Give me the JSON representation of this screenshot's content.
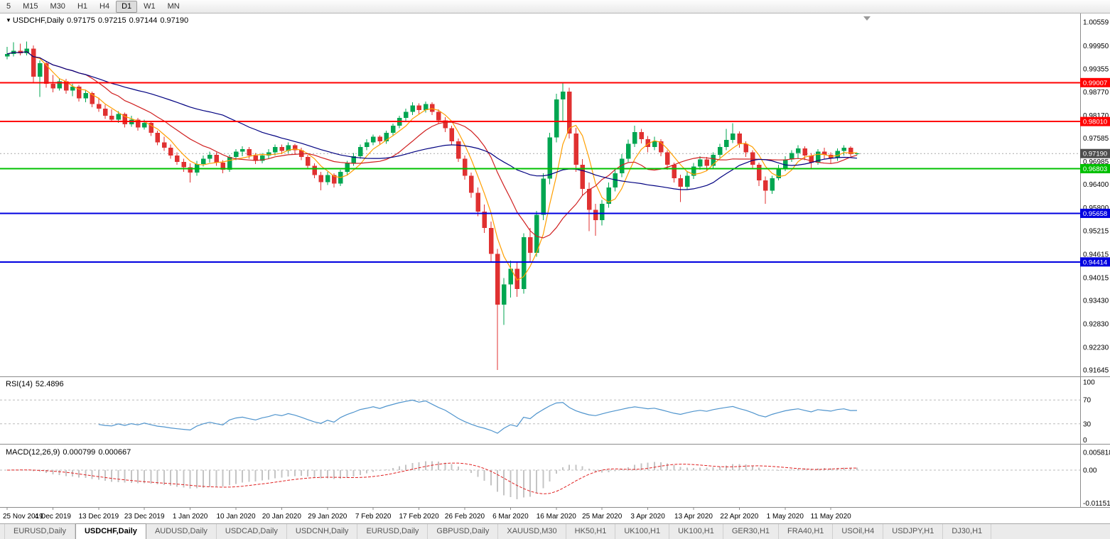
{
  "toolbar": {
    "timeframes": [
      {
        "label": "5",
        "active": false
      },
      {
        "label": "M15",
        "active": false
      },
      {
        "label": "M30",
        "active": false
      },
      {
        "label": "H1",
        "active": false
      },
      {
        "label": "H4",
        "active": false
      },
      {
        "label": "D1",
        "active": true
      },
      {
        "label": "W1",
        "active": false
      },
      {
        "label": "MN",
        "active": false
      }
    ]
  },
  "chart": {
    "title": {
      "symbol_period": "USDCHF,Daily",
      "open": "0.97175",
      "high": "0.97215",
      "low": "0.97144",
      "close": "0.97190"
    }
  },
  "rsi": {
    "name": "RSI(14)",
    "period": 14,
    "value": "52.4896",
    "color": "#4f94cd",
    "levels": [
      70,
      30
    ],
    "scale_labels": [
      "100",
      "70",
      "30",
      "0"
    ]
  },
  "macd": {
    "name": "MACD(12,26,9)",
    "fast": 12,
    "slow": 26,
    "signal_period": 9,
    "main_value": "0.000799",
    "signal_value": "0.000667",
    "histogram_color": "#c4c4c4",
    "signal_color": "#e02020",
    "scale_labels": [
      "0.005818",
      "0.00",
      "-0.011514"
    ]
  },
  "tabs": [
    {
      "label": "EURUSD,Daily",
      "active": false
    },
    {
      "label": "USDCHF,Daily",
      "active": true
    },
    {
      "label": "AUDUSD,Daily",
      "active": false
    },
    {
      "label": "USDCAD,Daily",
      "active": false
    },
    {
      "label": "USDCNH,Daily",
      "active": false
    },
    {
      "label": "EURUSD,Daily",
      "active": false
    },
    {
      "label": "GBPUSD,Daily",
      "active": false
    },
    {
      "label": "XAUUSD,M30",
      "active": false
    },
    {
      "label": "HK50,H1",
      "active": false
    },
    {
      "label": "UK100,H1",
      "active": false
    },
    {
      "label": "UK100,H1",
      "active": false
    },
    {
      "label": "GER30,H1",
      "active": false
    },
    {
      "label": "FRA40,H1",
      "active": false
    },
    {
      "label": "USOil,H4",
      "active": false
    },
    {
      "label": "USDJPY,H1",
      "active": false
    },
    {
      "label": "DJ30,H1",
      "active": false
    }
  ],
  "chart_data": {
    "type": "candlestick",
    "symbol": "USDCHF",
    "period": "Daily",
    "colors": {
      "bull": "#00a651",
      "bear": "#e03131"
    },
    "price_axis": {
      "ticks": [
        "1.00559",
        "0.99950",
        "0.99355",
        "0.98770",
        "0.98170",
        "0.97585",
        "0.96985",
        "0.96400",
        "0.95800",
        "0.95215",
        "0.94615",
        "0.94015",
        "0.93430",
        "0.92830",
        "0.92230",
        "0.91645"
      ]
    },
    "x_label_step": 7,
    "x_labels": [
      "25 Nov 2019",
      "4 Dec 2019",
      "13 Dec 2019",
      "23 Dec 2019",
      "1 Jan 2020",
      "10 Jan 2020",
      "20 Jan 2020",
      "29 Jan 2020",
      "7 Feb 2020",
      "17 Feb 2020",
      "26 Feb 2020",
      "6 Mar 2020",
      "16 Mar 2020",
      "25 Mar 2020",
      "3 Apr 2020",
      "13 Apr 2020",
      "22 Apr 2020",
      "1 May 2020",
      "11 May 2020"
    ],
    "moving_averages": [
      {
        "period": 5,
        "color": "#ff9f00"
      },
      {
        "period": 13,
        "color": "#d02020"
      },
      {
        "period": 34,
        "color": "#000080"
      }
    ],
    "hlines": [
      {
        "price": 0.99007,
        "label": "0.99007",
        "color": "#ff0000"
      },
      {
        "price": 0.9801,
        "label": "0.98010",
        "color": "#ff0000"
      },
      {
        "price": 0.96803,
        "label": "0.96803",
        "color": "#00c000"
      },
      {
        "price": 0.95658,
        "label": "0.95658",
        "color": "#0000e0"
      },
      {
        "price": 0.94414,
        "label": "0.94414",
        "color": "#0000e0"
      }
    ],
    "current_price": {
      "value": 0.9719,
      "label": "0.97190"
    },
    "candles": [
      [
        0.9968,
        0.9992,
        0.996,
        0.9974
      ],
      [
        0.9974,
        1.0004,
        0.9968,
        0.9982
      ],
      [
        0.9982,
        1.0,
        0.997,
        0.9976
      ],
      [
        0.9976,
        1.0006,
        0.997,
        0.9988
      ],
      [
        0.9988,
        0.9996,
        0.9902,
        0.9916
      ],
      [
        0.9916,
        0.9958,
        0.9864,
        0.995
      ],
      [
        0.995,
        0.9955,
        0.9888,
        0.9898
      ],
      [
        0.9898,
        0.992,
        0.9876,
        0.9886
      ],
      [
        0.9886,
        0.9912,
        0.988,
        0.9904
      ],
      [
        0.9904,
        0.991,
        0.9872,
        0.988
      ],
      [
        0.988,
        0.9898,
        0.9866,
        0.989
      ],
      [
        0.989,
        0.9895,
        0.9852,
        0.986
      ],
      [
        0.986,
        0.9882,
        0.985,
        0.9874
      ],
      [
        0.9874,
        0.9878,
        0.9838,
        0.9846
      ],
      [
        0.9846,
        0.9862,
        0.9826,
        0.9834
      ],
      [
        0.9834,
        0.9844,
        0.9808,
        0.9816
      ],
      [
        0.9816,
        0.9832,
        0.98,
        0.9806
      ],
      [
        0.9806,
        0.9828,
        0.9798,
        0.982
      ],
      [
        0.982,
        0.9824,
        0.9786,
        0.9794
      ],
      [
        0.9794,
        0.9816,
        0.9788,
        0.9806
      ],
      [
        0.9806,
        0.981,
        0.9778,
        0.9786
      ],
      [
        0.9786,
        0.9806,
        0.978,
        0.9798
      ],
      [
        0.9798,
        0.9802,
        0.9764,
        0.9772
      ],
      [
        0.9772,
        0.9778,
        0.974,
        0.9748
      ],
      [
        0.9748,
        0.9762,
        0.9726,
        0.9734
      ],
      [
        0.9734,
        0.9742,
        0.9706,
        0.9714
      ],
      [
        0.9714,
        0.9722,
        0.969,
        0.9698
      ],
      [
        0.9698,
        0.9706,
        0.9672,
        0.9684
      ],
      [
        0.9684,
        0.9694,
        0.9645,
        0.967
      ],
      [
        0.967,
        0.97,
        0.9662,
        0.9692
      ],
      [
        0.9692,
        0.9714,
        0.9686,
        0.9706
      ],
      [
        0.9706,
        0.9724,
        0.9696,
        0.9716
      ],
      [
        0.9716,
        0.9722,
        0.9688,
        0.9696
      ],
      [
        0.9696,
        0.9702,
        0.9668,
        0.9678
      ],
      [
        0.9678,
        0.9716,
        0.9672,
        0.971
      ],
      [
        0.971,
        0.973,
        0.9702,
        0.9724
      ],
      [
        0.9724,
        0.9738,
        0.9712,
        0.973
      ],
      [
        0.973,
        0.9736,
        0.9706,
        0.9714
      ],
      [
        0.9714,
        0.972,
        0.9692,
        0.97
      ],
      [
        0.97,
        0.972,
        0.9694,
        0.9714
      ],
      [
        0.9714,
        0.973,
        0.9706,
        0.9722
      ],
      [
        0.9722,
        0.9742,
        0.9714,
        0.9736
      ],
      [
        0.9736,
        0.9742,
        0.9718,
        0.9726
      ],
      [
        0.9726,
        0.9748,
        0.972,
        0.974
      ],
      [
        0.974,
        0.9744,
        0.9718,
        0.9728
      ],
      [
        0.9728,
        0.9734,
        0.9702,
        0.971
      ],
      [
        0.971,
        0.9716,
        0.968,
        0.9688
      ],
      [
        0.9688,
        0.9694,
        0.9656,
        0.9664
      ],
      [
        0.9664,
        0.9672,
        0.9625,
        0.9646
      ],
      [
        0.9646,
        0.9672,
        0.9638,
        0.9664
      ],
      [
        0.9664,
        0.9668,
        0.9632,
        0.9642
      ],
      [
        0.9642,
        0.9678,
        0.9636,
        0.9672
      ],
      [
        0.9672,
        0.97,
        0.9664,
        0.9694
      ],
      [
        0.9694,
        0.972,
        0.9688,
        0.9712
      ],
      [
        0.9712,
        0.9742,
        0.9706,
        0.9736
      ],
      [
        0.9736,
        0.9756,
        0.9728,
        0.9748
      ],
      [
        0.9748,
        0.9768,
        0.974,
        0.9762
      ],
      [
        0.9762,
        0.9766,
        0.9742,
        0.975
      ],
      [
        0.975,
        0.9778,
        0.9744,
        0.9772
      ],
      [
        0.9772,
        0.9796,
        0.9766,
        0.979
      ],
      [
        0.979,
        0.9816,
        0.9784,
        0.981
      ],
      [
        0.981,
        0.9834,
        0.9802,
        0.9826
      ],
      [
        0.9826,
        0.985,
        0.9818,
        0.9842
      ],
      [
        0.9842,
        0.9848,
        0.982,
        0.983
      ],
      [
        0.983,
        0.9852,
        0.9824,
        0.9846
      ],
      [
        0.9846,
        0.985,
        0.9818,
        0.9826
      ],
      [
        0.9826,
        0.9832,
        0.9796,
        0.9804
      ],
      [
        0.9804,
        0.9812,
        0.9774,
        0.9784
      ],
      [
        0.9784,
        0.979,
        0.9742,
        0.975
      ],
      [
        0.975,
        0.9758,
        0.9698,
        0.9706
      ],
      [
        0.9706,
        0.9714,
        0.9652,
        0.9662
      ],
      [
        0.9662,
        0.967,
        0.9606,
        0.9618
      ],
      [
        0.9618,
        0.9632,
        0.9558,
        0.957
      ],
      [
        0.957,
        0.9588,
        0.9516,
        0.9528
      ],
      [
        0.9528,
        0.9545,
        0.9442,
        0.9462
      ],
      [
        0.9462,
        0.9475,
        0.9165,
        0.9332
      ],
      [
        0.9332,
        0.94,
        0.928,
        0.9384
      ],
      [
        0.9384,
        0.9445,
        0.935,
        0.9424
      ],
      [
        0.9424,
        0.944,
        0.9352,
        0.9372
      ],
      [
        0.9372,
        0.9515,
        0.936,
        0.9505
      ],
      [
        0.9505,
        0.9528,
        0.9442,
        0.9465
      ],
      [
        0.9465,
        0.9572,
        0.9455,
        0.9562
      ],
      [
        0.9562,
        0.9668,
        0.9548,
        0.9655
      ],
      [
        0.9655,
        0.9772,
        0.964,
        0.976
      ],
      [
        0.976,
        0.9872,
        0.9748,
        0.9858
      ],
      [
        0.9858,
        0.9901,
        0.98,
        0.9878
      ],
      [
        0.9878,
        0.9888,
        0.9758,
        0.977
      ],
      [
        0.977,
        0.9785,
        0.9672,
        0.969
      ],
      [
        0.969,
        0.9705,
        0.9612,
        0.9628
      ],
      [
        0.9628,
        0.9645,
        0.952,
        0.9575
      ],
      [
        0.9575,
        0.959,
        0.9508,
        0.9548
      ],
      [
        0.9548,
        0.96,
        0.9535,
        0.959
      ],
      [
        0.959,
        0.9645,
        0.958,
        0.9632
      ],
      [
        0.9632,
        0.968,
        0.9622,
        0.9668
      ],
      [
        0.9668,
        0.9718,
        0.9658,
        0.9706
      ],
      [
        0.9706,
        0.9755,
        0.9698,
        0.9744
      ],
      [
        0.9744,
        0.979,
        0.9736,
        0.9774
      ],
      [
        0.9774,
        0.9782,
        0.9745,
        0.9756
      ],
      [
        0.9756,
        0.9764,
        0.9722,
        0.9736
      ],
      [
        0.9736,
        0.9762,
        0.9728,
        0.975
      ],
      [
        0.975,
        0.9756,
        0.9712,
        0.9722
      ],
      [
        0.9722,
        0.9728,
        0.9678,
        0.969
      ],
      [
        0.969,
        0.9696,
        0.9645,
        0.9656
      ],
      [
        0.9656,
        0.9665,
        0.9595,
        0.9634
      ],
      [
        0.9634,
        0.9672,
        0.9626,
        0.9662
      ],
      [
        0.9662,
        0.9695,
        0.9654,
        0.9686
      ],
      [
        0.9686,
        0.9712,
        0.9678,
        0.9704
      ],
      [
        0.9704,
        0.971,
        0.9676,
        0.9688
      ],
      [
        0.9688,
        0.9722,
        0.9682,
        0.9716
      ],
      [
        0.9716,
        0.9744,
        0.9708,
        0.9736
      ],
      [
        0.9736,
        0.9782,
        0.9728,
        0.9754
      ],
      [
        0.9754,
        0.9797,
        0.9746,
        0.977
      ],
      [
        0.977,
        0.9776,
        0.9734,
        0.9744
      ],
      [
        0.9744,
        0.975,
        0.971,
        0.9722
      ],
      [
        0.9722,
        0.9728,
        0.968,
        0.969
      ],
      [
        0.969,
        0.9696,
        0.9636,
        0.965
      ],
      [
        0.965,
        0.966,
        0.959,
        0.9624
      ],
      [
        0.9624,
        0.9662,
        0.9616,
        0.9656
      ],
      [
        0.9656,
        0.969,
        0.965,
        0.968
      ],
      [
        0.968,
        0.9712,
        0.9674,
        0.9704
      ],
      [
        0.9704,
        0.9728,
        0.9698,
        0.972
      ],
      [
        0.972,
        0.974,
        0.9706,
        0.9732
      ],
      [
        0.9732,
        0.9738,
        0.9702,
        0.9714
      ],
      [
        0.9714,
        0.972,
        0.9682,
        0.9696
      ],
      [
        0.9696,
        0.973,
        0.969,
        0.9724
      ],
      [
        0.9724,
        0.9734,
        0.9704,
        0.9716
      ],
      [
        0.9716,
        0.9722,
        0.9694,
        0.9708
      ],
      [
        0.9708,
        0.9732,
        0.97,
        0.9726
      ],
      [
        0.9726,
        0.974,
        0.9714,
        0.9734
      ],
      [
        0.9734,
        0.9738,
        0.9712,
        0.9718
      ],
      [
        0.97175,
        0.97215,
        0.97144,
        0.9719
      ]
    ]
  }
}
